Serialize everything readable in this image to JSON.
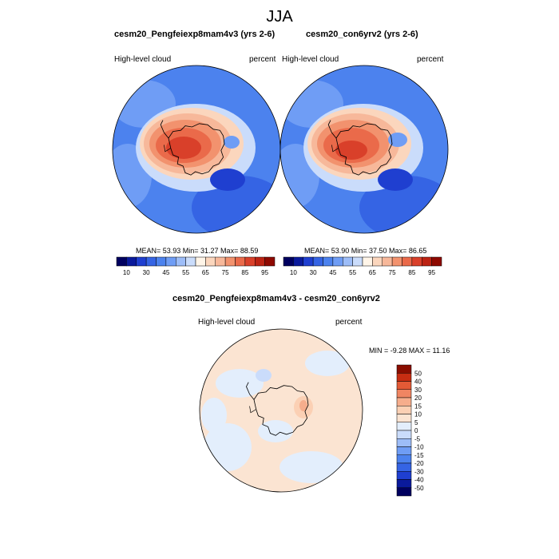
{
  "page": {
    "title": "JJA"
  },
  "panels": [
    {
      "title": "cesm20_Pengfeiexp8mam4v3 (yrs 2-6)",
      "left_label": "High-level cloud",
      "right_label": "percent",
      "stats": "MEAN=  53.93  Min=  31.27  Max=  88.59"
    },
    {
      "title": "cesm20_con6yrv2 (yrs 2-6)",
      "left_label": "High-level cloud",
      "right_label": "percent",
      "stats": "MEAN=  53.90  Min=  37.50  Max=  86.65"
    },
    {
      "title": "cesm20_Pengfeiexp8mam4v3 - cesm20_con6yrv2",
      "left_label": "High-level cloud",
      "right_label": "percent",
      "stats": "MIN =  -9.28  MAX =  11.16"
    }
  ],
  "colors": {
    "abs_scale": [
      "#00005f",
      "#0a1a9c",
      "#1f3fd0",
      "#3564e4",
      "#4c82ee",
      "#6f9df5",
      "#9dbdf8",
      "#cadcfb",
      "#fff5e8",
      "#fbd6bd",
      "#f7b89a",
      "#f2926e",
      "#ea6a4a",
      "#d9402a",
      "#bc2313",
      "#8e0900"
    ],
    "diff_scale": [
      "#00005f",
      "#0a1a9c",
      "#1f3fd0",
      "#3564e4",
      "#4c82ee",
      "#6f9df5",
      "#9dbdf8",
      "#cadcfb",
      "#e3eefc",
      "#fbe4d2",
      "#fbd0b4",
      "#f6ad8c",
      "#f08562",
      "#e35a36",
      "#c72d12",
      "#8a0d00"
    ]
  },
  "chart_data": [
    {
      "type": "heatmap",
      "projection": "south-polar-stereographic",
      "title": "cesm20_Pengfeiexp8mam4v3 (yrs 2-6)",
      "variable": "High-level cloud",
      "units": "percent",
      "colorbar": {
        "tick_labels": [
          "10",
          "30",
          "45",
          "55",
          "65",
          "75",
          "85",
          "95"
        ]
      },
      "stats": {
        "mean": 53.93,
        "min": 31.27,
        "max": 88.59
      }
    },
    {
      "type": "heatmap",
      "projection": "south-polar-stereographic",
      "title": "cesm20_con6yrv2 (yrs 2-6)",
      "variable": "High-level cloud",
      "units": "percent",
      "colorbar": {
        "tick_labels": [
          "10",
          "30",
          "45",
          "55",
          "65",
          "75",
          "85",
          "95"
        ]
      },
      "stats": {
        "mean": 53.9,
        "min": 37.5,
        "max": 86.65
      }
    },
    {
      "type": "heatmap",
      "projection": "south-polar-stereographic",
      "title": "cesm20_Pengfeiexp8mam4v3 - cesm20_con6yrv2",
      "variable": "High-level cloud",
      "units": "percent",
      "colorbar": {
        "tick_labels": [
          "50",
          "40",
          "30",
          "20",
          "15",
          "10",
          "5",
          "0",
          "-5",
          "-10",
          "-15",
          "-20",
          "-30",
          "-40",
          "-50"
        ]
      },
      "stats": {
        "min": -9.28,
        "max": 11.16
      }
    }
  ]
}
